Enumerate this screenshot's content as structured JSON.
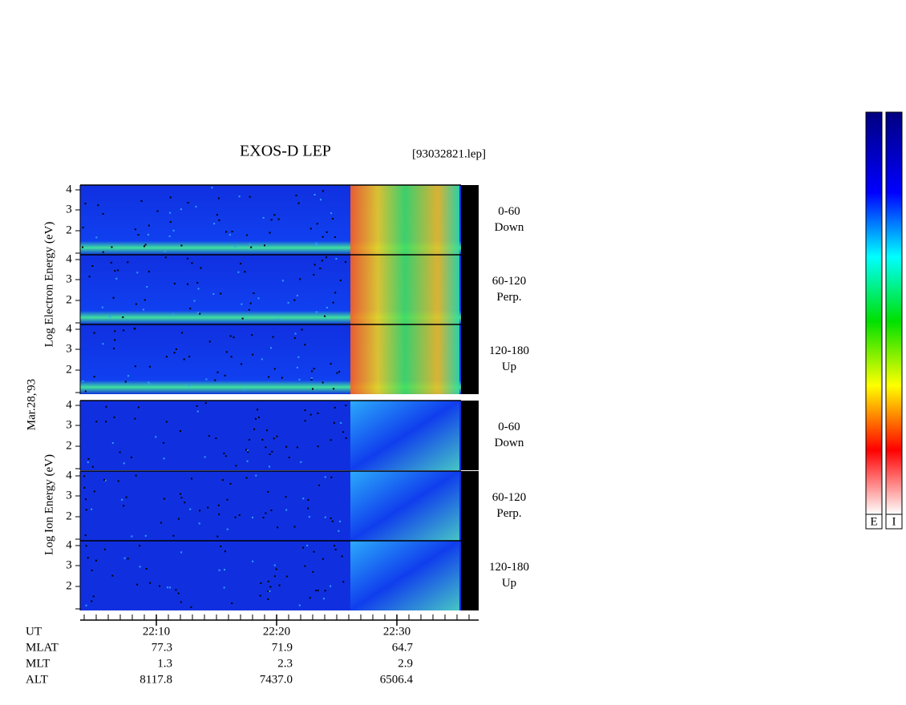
{
  "title": "EXOS-D LEP",
  "file": "[93032821.lep]",
  "date_label": "Mar.28,'93",
  "electron_label": "Log Electron Energy (eV)",
  "ion_label": "Log Ion Energy (eV)",
  "panels": [
    {
      "label": "0-60",
      "sublabel": "Down",
      "yticks": [
        4,
        3,
        2
      ]
    },
    {
      "label": "60-120",
      "sublabel": "Perp.",
      "yticks": [
        4,
        3,
        2
      ]
    },
    {
      "label": "120-180",
      "sublabel": "Up",
      "yticks": [
        4,
        3,
        2
      ]
    },
    {
      "label": "0-60",
      "sublabel": "Down",
      "yticks": [
        4,
        3,
        2
      ]
    },
    {
      "label": "60-120",
      "sublabel": "Perp.",
      "yticks": [
        4,
        3,
        2
      ]
    },
    {
      "label": "120-180",
      "sublabel": "Up",
      "yticks": [
        4,
        3,
        2
      ]
    }
  ],
  "time_rows": [
    {
      "label": "UT",
      "values": [
        "22:10",
        "22:20",
        "22:30"
      ]
    },
    {
      "label": "MLAT",
      "values": [
        "77.3",
        "71.9",
        "64.7"
      ]
    },
    {
      "label": "MLT",
      "values": [
        "1.3",
        "2.3",
        "2.9"
      ]
    },
    {
      "label": "ALT",
      "values": [
        "8117.8",
        "7437.0",
        "6506.4"
      ]
    }
  ],
  "colorbar_labels": [
    "E",
    "I"
  ]
}
